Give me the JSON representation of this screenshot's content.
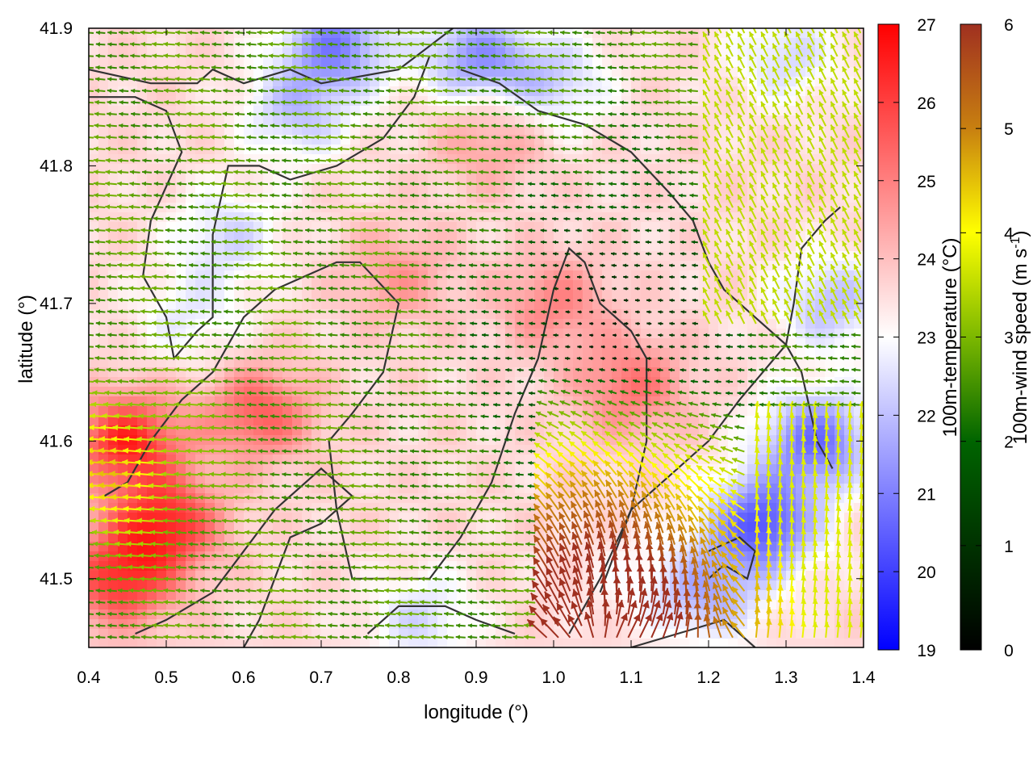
{
  "chart_data": {
    "type": "heatmap",
    "subtype": "temperature field with wind vectors and contour lines",
    "xlabel": "longitude (°)",
    "ylabel": "latitude (°)",
    "xlim": [
      0.4,
      1.4
    ],
    "ylim": [
      41.45,
      41.9
    ],
    "xticks": [
      0.4,
      0.5,
      0.6,
      0.7,
      0.8,
      0.9,
      1.0,
      1.1,
      1.2,
      1.3,
      1.4
    ],
    "yticks": [
      41.5,
      41.6,
      41.7,
      41.8,
      41.9
    ],
    "xtick_labels": [
      "0.4",
      "0.5",
      "0.6",
      "0.7",
      "0.8",
      "0.9",
      "1.0",
      "1.1",
      "1.2",
      "1.3",
      "1.4"
    ],
    "ytick_labels": [
      "41.5",
      "41.6",
      "41.7",
      "41.8",
      "41.9"
    ],
    "grid": false,
    "colorbars": [
      {
        "label": "100m-temperature (°C)",
        "range": [
          19,
          27
        ],
        "ticks": [
          19,
          20,
          21,
          22,
          23,
          24,
          25,
          26,
          27
        ],
        "tick_labels": [
          "19",
          "20",
          "21",
          "22",
          "23",
          "24",
          "25",
          "26",
          "27"
        ],
        "colors": [
          "#0000ff",
          "#ffffff",
          "#ff0000"
        ]
      },
      {
        "label": "100m-wind speed (m s",
        "label_sup": "-1",
        "label_end": ")",
        "range": [
          0,
          6
        ],
        "ticks": [
          0,
          1,
          2,
          3,
          4,
          5,
          6
        ],
        "tick_labels": [
          "0",
          "1",
          "2",
          "3",
          "4",
          "5",
          "6"
        ],
        "colors": [
          "#000000",
          "#006400",
          "#7cb800",
          "#ffff00",
          "#c88010",
          "#a03020"
        ]
      }
    ],
    "temperature_anomalies": [
      {
        "lon": 0.72,
        "lat": 41.89,
        "dT": -2.5
      },
      {
        "lon": 0.9,
        "lat": 41.88,
        "dT": -2.2
      },
      {
        "lon": 1.0,
        "lat": 41.86,
        "dT": -1.4
      },
      {
        "lon": 1.3,
        "lat": 41.88,
        "dT": -1.2
      },
      {
        "lon": 0.67,
        "lat": 41.84,
        "dT": -1.5
      },
      {
        "lon": 0.58,
        "lat": 41.75,
        "dT": -1.2
      },
      {
        "lon": 0.53,
        "lat": 41.69,
        "dT": -0.9
      },
      {
        "lon": 0.45,
        "lat": 41.6,
        "dT": 2.8
      },
      {
        "lon": 0.5,
        "lat": 41.54,
        "dT": 2.6
      },
      {
        "lon": 0.44,
        "lat": 41.5,
        "dT": 2.5
      },
      {
        "lon": 0.62,
        "lat": 41.62,
        "dT": 1.9
      },
      {
        "lon": 0.8,
        "lat": 41.72,
        "dT": 1.0
      },
      {
        "lon": 1.0,
        "lat": 41.7,
        "dT": 1.3
      },
      {
        "lon": 1.1,
        "lat": 41.64,
        "dT": 1.6
      },
      {
        "lon": 0.92,
        "lat": 41.82,
        "dT": 1.0
      },
      {
        "lon": 1.27,
        "lat": 41.54,
        "dT": -3.2
      },
      {
        "lon": 1.34,
        "lat": 41.6,
        "dT": -2.8
      },
      {
        "lon": 1.36,
        "lat": 41.7,
        "dT": -1.6
      },
      {
        "lon": 1.2,
        "lat": 41.49,
        "dT": -1.8
      },
      {
        "lon": 0.83,
        "lat": 41.47,
        "dT": -1.2
      },
      {
        "lon": 1.1,
        "lat": 41.5,
        "dT": -0.4
      }
    ],
    "wind_field": {
      "base_direction": "from east (vectors point west)",
      "max_speed": 6,
      "calm_zone_center": {
        "lon": 1.08,
        "lat": 41.68
      },
      "strong_divergent_source": {
        "lon": 1.06,
        "lat": 41.45,
        "speed": 6
      },
      "strong_west_band": {
        "lon": 0.45,
        "lat": 41.58,
        "speed": 4
      }
    },
    "contours": [
      {
        "points": [
          [
            0.4,
            41.87
          ],
          [
            0.48,
            41.86
          ],
          [
            0.54,
            41.86
          ],
          [
            0.56,
            41.87
          ],
          [
            0.6,
            41.86
          ],
          [
            0.66,
            41.87
          ],
          [
            0.7,
            41.86
          ],
          [
            0.8,
            41.87
          ],
          [
            0.87,
            41.9
          ]
        ]
      },
      {
        "points": [
          [
            0.4,
            41.85
          ],
          [
            0.46,
            41.85
          ],
          [
            0.5,
            41.84
          ],
          [
            0.52,
            41.81
          ],
          [
            0.48,
            41.76
          ],
          [
            0.47,
            41.72
          ],
          [
            0.5,
            41.69
          ],
          [
            0.51,
            41.66
          ],
          [
            0.54,
            41.68
          ],
          [
            0.56,
            41.69
          ],
          [
            0.56,
            41.75
          ],
          [
            0.58,
            41.8
          ],
          [
            0.62,
            41.8
          ],
          [
            0.66,
            41.79
          ],
          [
            0.72,
            41.8
          ],
          [
            0.78,
            41.82
          ],
          [
            0.82,
            41.85
          ],
          [
            0.84,
            41.88
          ]
        ]
      },
      {
        "points": [
          [
            0.42,
            41.56
          ],
          [
            0.45,
            41.57
          ],
          [
            0.48,
            41.6
          ],
          [
            0.52,
            41.63
          ],
          [
            0.56,
            41.65
          ],
          [
            0.6,
            41.69
          ],
          [
            0.64,
            41.71
          ],
          [
            0.68,
            41.72
          ],
          [
            0.72,
            41.73
          ],
          [
            0.75,
            41.73
          ],
          [
            0.8,
            41.7
          ],
          [
            0.78,
            41.65
          ],
          [
            0.74,
            41.62
          ],
          [
            0.71,
            41.6
          ],
          [
            0.72,
            41.55
          ],
          [
            0.74,
            41.5
          ],
          [
            0.78,
            41.5
          ],
          [
            0.84,
            41.5
          ],
          [
            0.88,
            41.53
          ],
          [
            0.92,
            41.57
          ],
          [
            0.95,
            41.62
          ],
          [
            0.98,
            41.66
          ],
          [
            1.0,
            41.71
          ],
          [
            1.02,
            41.74
          ],
          [
            1.04,
            41.73
          ],
          [
            1.06,
            41.7
          ],
          [
            1.1,
            41.68
          ],
          [
            1.12,
            41.66
          ],
          [
            1.12,
            41.6
          ],
          [
            1.1,
            41.55
          ],
          [
            1.08,
            41.52
          ],
          [
            1.06,
            41.49
          ]
        ]
      },
      {
        "points": [
          [
            0.88,
            41.87
          ],
          [
            0.93,
            41.86
          ],
          [
            0.98,
            41.84
          ],
          [
            1.04,
            41.83
          ],
          [
            1.1,
            41.81
          ],
          [
            1.15,
            41.78
          ],
          [
            1.18,
            41.76
          ],
          [
            1.2,
            41.73
          ],
          [
            1.22,
            41.71
          ],
          [
            1.26,
            41.69
          ],
          [
            1.3,
            41.67
          ],
          [
            1.32,
            41.65
          ],
          [
            1.34,
            41.6
          ],
          [
            1.36,
            41.58
          ]
        ]
      },
      {
        "points": [
          [
            0.46,
            41.46
          ],
          [
            0.5,
            41.47
          ],
          [
            0.56,
            41.49
          ],
          [
            0.6,
            41.52
          ],
          [
            0.64,
            41.55
          ],
          [
            0.7,
            41.58
          ],
          [
            0.74,
            41.56
          ],
          [
            0.7,
            41.54
          ],
          [
            0.66,
            41.53
          ],
          [
            0.64,
            41.5
          ],
          [
            0.62,
            41.47
          ],
          [
            0.6,
            41.45
          ]
        ]
      },
      {
        "points": [
          [
            1.02,
            41.46
          ],
          [
            1.06,
            41.5
          ],
          [
            1.1,
            41.55
          ],
          [
            1.16,
            41.58
          ],
          [
            1.2,
            41.6
          ],
          [
            1.24,
            41.63
          ],
          [
            1.27,
            41.65
          ],
          [
            1.3,
            41.67
          ],
          [
            1.31,
            41.7
          ],
          [
            1.32,
            41.74
          ],
          [
            1.35,
            41.76
          ],
          [
            1.37,
            41.77
          ]
        ]
      },
      {
        "points": [
          [
            1.2,
            41.52
          ],
          [
            1.24,
            41.53
          ],
          [
            1.26,
            41.52
          ],
          [
            1.25,
            41.5
          ],
          [
            1.22,
            41.51
          ],
          [
            1.2,
            41.5
          ]
        ]
      },
      {
        "points": [
          [
            0.76,
            41.46
          ],
          [
            0.8,
            41.48
          ],
          [
            0.86,
            41.48
          ],
          [
            0.9,
            41.47
          ],
          [
            0.95,
            41.46
          ]
        ]
      },
      {
        "points": [
          [
            1.1,
            41.45
          ],
          [
            1.16,
            41.46
          ],
          [
            1.22,
            41.47
          ],
          [
            1.26,
            41.45
          ]
        ]
      }
    ]
  }
}
